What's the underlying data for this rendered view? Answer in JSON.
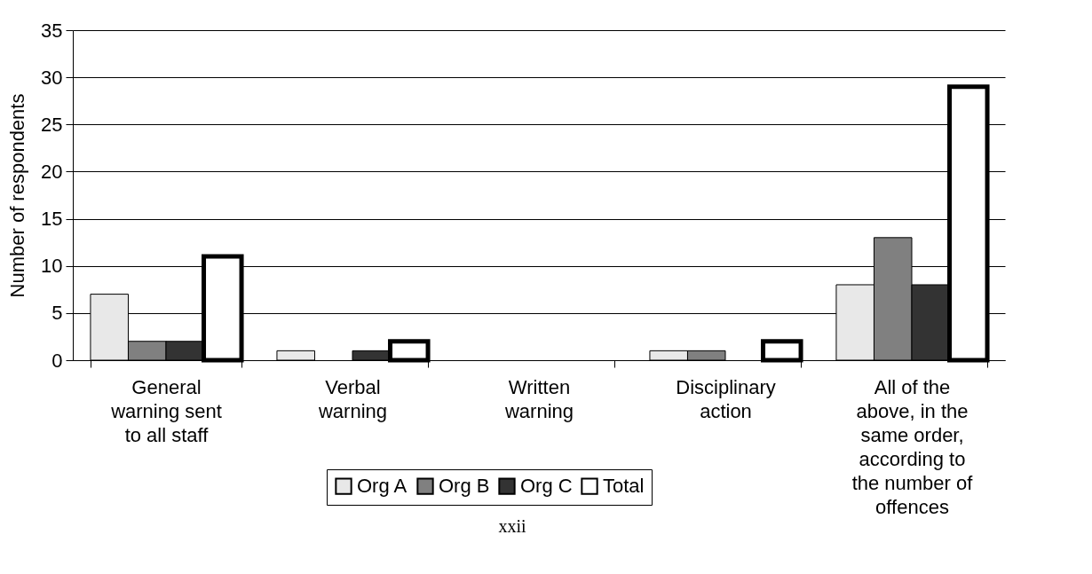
{
  "chart_data": {
    "type": "bar",
    "ylabel": "Number of respondents",
    "categories": [
      "General warning sent to all staff",
      "Verbal warning",
      "Written warning",
      "Disciplinary action",
      "All of the above, in the same order, according to the number of offences"
    ],
    "series": [
      {
        "name": "Org A",
        "color": "#e8e8e8",
        "values": [
          7,
          1,
          0,
          1,
          8
        ]
      },
      {
        "name": "Org B",
        "color": "#808080",
        "values": [
          2,
          0,
          0,
          1,
          13
        ]
      },
      {
        "name": "Org C",
        "color": "#333333",
        "values": [
          2,
          1,
          0,
          0,
          8
        ]
      },
      {
        "name": "Total",
        "color": "#ffffff",
        "values": [
          11,
          2,
          0,
          2,
          29
        ]
      }
    ],
    "ylim": [
      0,
      35
    ],
    "yticks": [
      0,
      5,
      10,
      15,
      20,
      25,
      30,
      35
    ],
    "grid": "y",
    "legend": "bottom",
    "annotations": [
      "xxii"
    ]
  }
}
